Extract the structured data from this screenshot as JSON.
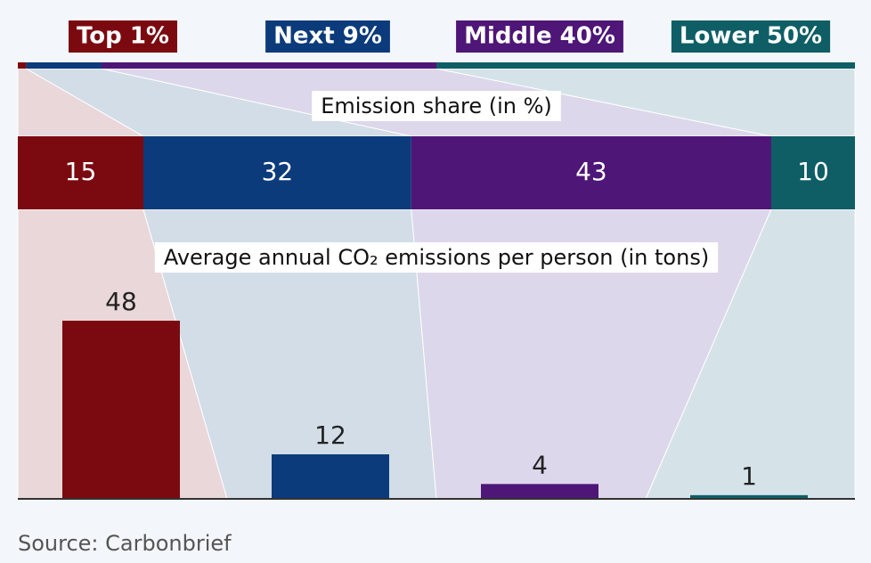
{
  "chart_data": {
    "type": "shares",
    "groups": [
      "Top 1%",
      "Next 9%",
      "Middle 40%",
      "Lower 50%"
    ],
    "colors": [
      "#7b0a10",
      "#0c3b7b",
      "#4e1677",
      "#0f5e66"
    ],
    "light_colors": [
      "#ead7da",
      "#d2dde7",
      "#ddd7eb",
      "#d5e3e9"
    ],
    "population_share": [
      1,
      9,
      40,
      50
    ],
    "share_title": "Emission share (in %)",
    "emission_share": [
      15,
      32,
      43,
      10
    ],
    "bar_title": "Average annual CO₂ emissions per person (in tons)",
    "per_person": [
      48,
      12,
      4,
      1
    ],
    "source": "Source: Carbonbrief"
  }
}
